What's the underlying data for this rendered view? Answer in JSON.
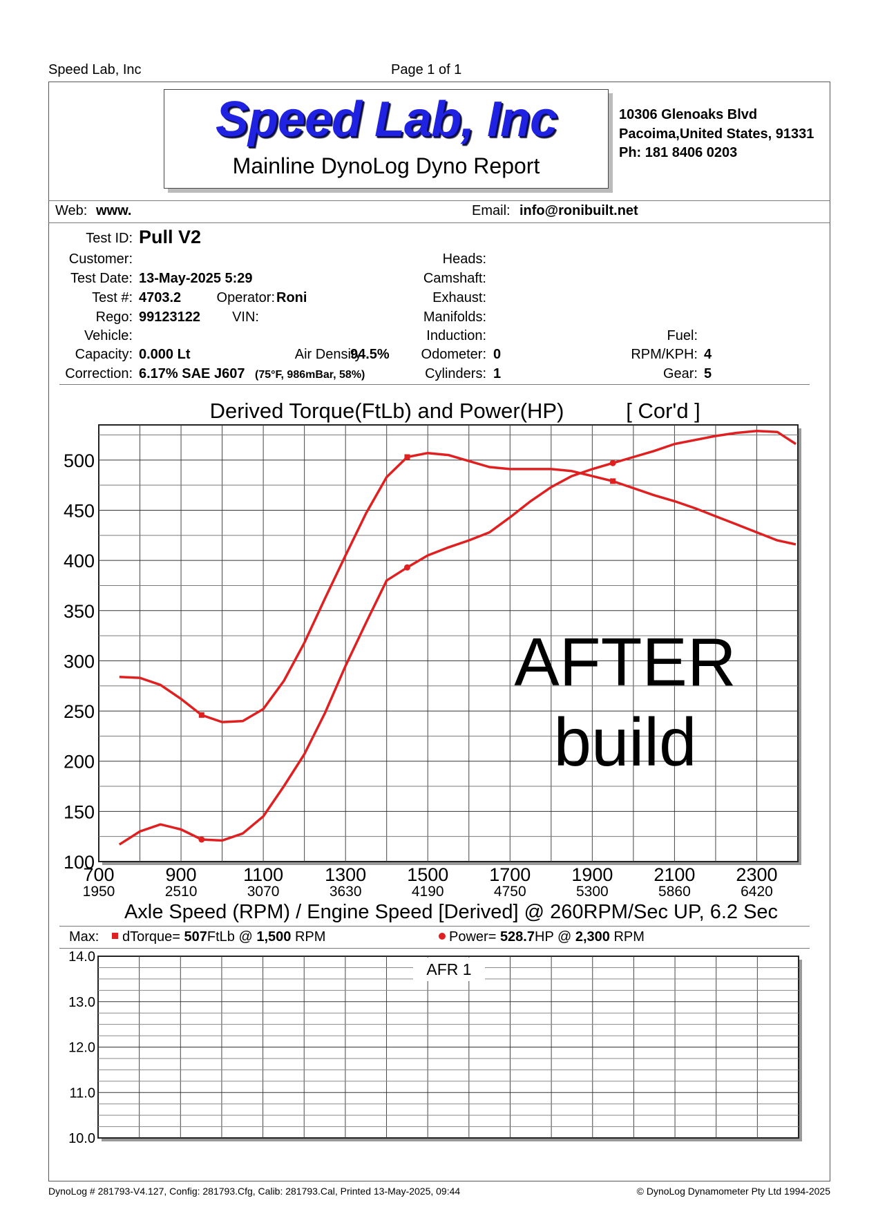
{
  "page_header": {
    "company": "Speed Lab, Inc",
    "page": "Page 1 of 1"
  },
  "logo": {
    "title": "Speed Lab, Inc",
    "subtitle": "Mainline DynoLog Dyno Report"
  },
  "address": {
    "line1": "10306 Glenoaks Blvd",
    "line2": "Pacoima,United States, 91331",
    "phone": "Ph: 181 8406 0203"
  },
  "contact": {
    "web_label": "Web:",
    "web_value": "www.",
    "email_label": "Email:",
    "email_value": "info@ronibuilt.net"
  },
  "test_info": {
    "test_id_label": "Test ID:",
    "test_id": "Pull V2",
    "customer_label": "Customer:",
    "test_date_label": "Test Date:",
    "test_date": "13-May-2025 5:29",
    "test_num_label": "Test #:",
    "test_num": "4703.2",
    "operator_label": "Operator:",
    "operator": "Roni",
    "rego_label": "Rego:",
    "rego": "99123122",
    "vin_label": "VIN:",
    "vehicle_label": "Vehicle:",
    "capacity_label": "Capacity:",
    "capacity": "0.000 Lt",
    "air_density_label": "Air Density:",
    "air_density": "94.5%",
    "correction_label": "Correction:",
    "correction": "6.17% SAE J607",
    "correction_detail": "(75°F, 986mBar, 58%)",
    "heads_label": "Heads:",
    "camshaft_label": "Camshaft:",
    "exhaust_label": "Exhaust:",
    "manifolds_label": "Manifolds:",
    "induction_label": "Induction:",
    "odometer_label": "Odometer:",
    "odometer": "0",
    "cylinders_label": "Cylinders:",
    "cylinders": "1",
    "fuel_label": "Fuel:",
    "rpm_kph_label": "RPM/KPH:",
    "rpm_kph": "4",
    "gear_label": "Gear:",
    "gear": "5"
  },
  "max_line": {
    "max_label": "Max:",
    "torque_text": "dTorque=",
    "torque_value": "507",
    "torque_unit": "FtLb @",
    "torque_rpm": "1,500",
    "torque_rpm_unit": "RPM",
    "power_text": "Power=",
    "power_value": "528.7",
    "power_unit": "HP @",
    "power_rpm": "2,300",
    "power_rpm_unit": "RPM"
  },
  "chart_data": [
    {
      "type": "line",
      "title": "Derived Torque(FtLb) and Power(HP)",
      "title_suffix": "[ Cor'd ]",
      "xlabel": "Axle Speed (RPM) / Engine Speed [Derived] @ 260RPM/Sec UP, 6.2 Sec",
      "xlim": [
        700,
        2400
      ],
      "ylim": [
        100,
        535
      ],
      "x_ticks": [
        700,
        900,
        1100,
        1300,
        1500,
        1700,
        1900,
        2100,
        2300
      ],
      "x_tick_labels": [
        "700",
        "900",
        "1100",
        "1300",
        "1500",
        "1700",
        "1900",
        "2100",
        "2300"
      ],
      "x2_tick_labels": [
        "1950",
        "2510",
        "3070",
        "3630",
        "4190",
        "4750",
        "5300",
        "5860",
        "6420"
      ],
      "y_ticks": [
        100,
        150,
        200,
        250,
        300,
        350,
        400,
        450,
        500
      ],
      "y_tick_labels": [
        "100",
        "150",
        "200",
        "250",
        "300",
        "350",
        "400",
        "450",
        "500"
      ],
      "grid": true,
      "annotation": {
        "line1": "AFTER",
        "line2": "build"
      },
      "series": [
        {
          "color": "#e02020",
          "x": [
            750,
            800,
            850,
            900,
            950,
            1000,
            1050,
            1100,
            1150,
            1200,
            1250,
            1300,
            1350,
            1400,
            1450,
            1500,
            1550,
            1600,
            1650,
            1700,
            1750,
            1800,
            1850,
            1900,
            1950,
            2000,
            2050,
            2100,
            2150,
            2200,
            2250,
            2300,
            2350,
            2395
          ],
          "y": [
            284,
            283,
            276,
            262,
            246,
            239,
            240,
            252,
            280,
            318,
            362,
            405,
            447,
            483,
            503,
            507,
            505,
            499,
            493,
            491,
            491,
            491,
            489,
            484,
            479,
            472,
            465,
            459,
            452,
            444,
            436,
            428,
            420,
            416
          ],
          "markers_x": [
            950,
            1450,
            1950
          ]
        },
        {
          "color": "#e02020",
          "x": [
            750,
            800,
            850,
            900,
            950,
            1000,
            1050,
            1100,
            1150,
            1200,
            1250,
            1300,
            1350,
            1400,
            1450,
            1500,
            1550,
            1600,
            1650,
            1700,
            1750,
            1800,
            1850,
            1900,
            1950,
            2000,
            2050,
            2100,
            2150,
            2200,
            2250,
            2300,
            2350,
            2395
          ],
          "y": [
            117,
            130,
            137,
            132,
            122,
            121,
            128,
            145,
            175,
            207,
            248,
            295,
            338,
            380,
            393,
            405,
            413,
            420,
            428,
            443,
            459,
            473,
            484,
            491,
            497,
            503,
            509,
            516,
            520,
            524,
            527,
            529,
            528,
            516
          ],
          "markers_x": [
            950,
            1450,
            1950
          ]
        }
      ]
    },
    {
      "type": "line",
      "title": "AFR 1",
      "ylim": [
        10.0,
        14.0
      ],
      "y_ticks": [
        10.0,
        11.0,
        12.0,
        13.0,
        14.0
      ],
      "y_tick_labels": [
        "10.0",
        "11.0",
        "12.0",
        "13.0",
        "14.0"
      ],
      "grid": true,
      "series": []
    }
  ],
  "footer": {
    "left": "DynoLog # 281793-V4.127, Config: 281793.Cfg, Calib: 281793.Cal, Printed 13-May-2025, 09:44",
    "right": "© DynoLog Dynamometer Pty Ltd 1994-2025"
  }
}
